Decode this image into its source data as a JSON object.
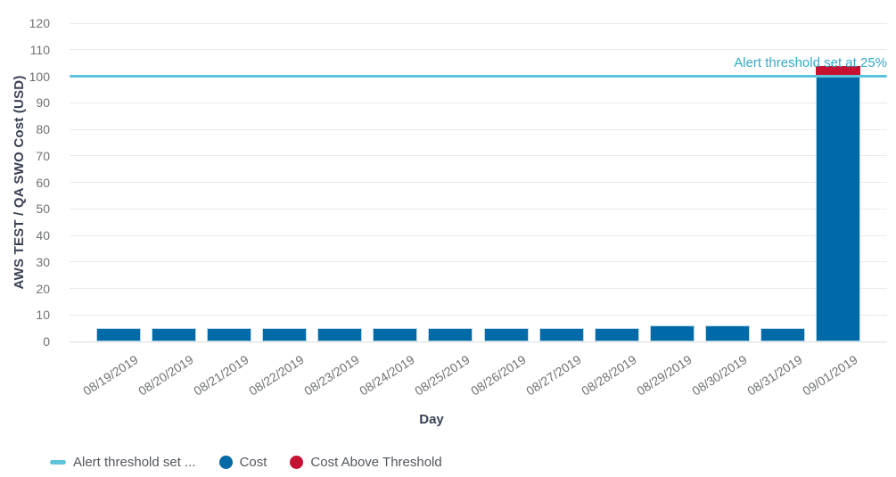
{
  "chart_data": {
    "type": "bar",
    "title": "",
    "xlabel": "Day",
    "ylabel": "AWS TEST / QA SWO Cost (USD)",
    "ylim": [
      0,
      120
    ],
    "ytick_step": 10,
    "grid": true,
    "legend_position": "bottom-left",
    "categories": [
      "08/19/2019",
      "08/20/2019",
      "08/21/2019",
      "08/22/2019",
      "08/23/2019",
      "08/24/2019",
      "08/25/2019",
      "08/26/2019",
      "08/27/2019",
      "08/28/2019",
      "08/29/2019",
      "08/30/2019",
      "08/31/2019",
      "09/01/2019"
    ],
    "series": [
      {
        "name": "Cost",
        "color": "#0069a7",
        "values": [
          5,
          5,
          5,
          5,
          5,
          5,
          5,
          5,
          5,
          5,
          6,
          6,
          5,
          104
        ]
      }
    ],
    "above_threshold_series": {
      "name": "Cost Above Threshold",
      "color": "#c61230"
    },
    "threshold": {
      "value": 100,
      "annotation": "Alert threshold set at 25%",
      "line_color": "#5ec4db",
      "text_color": "#36a9c9"
    },
    "legend": [
      {
        "label": "Alert threshold set ...",
        "marker": "line",
        "color": "#5ec4db"
      },
      {
        "label": "Cost",
        "marker": "circle",
        "color": "#0069a7"
      },
      {
        "label": "Cost Above Threshold",
        "marker": "circle",
        "color": "#c61230"
      }
    ]
  }
}
